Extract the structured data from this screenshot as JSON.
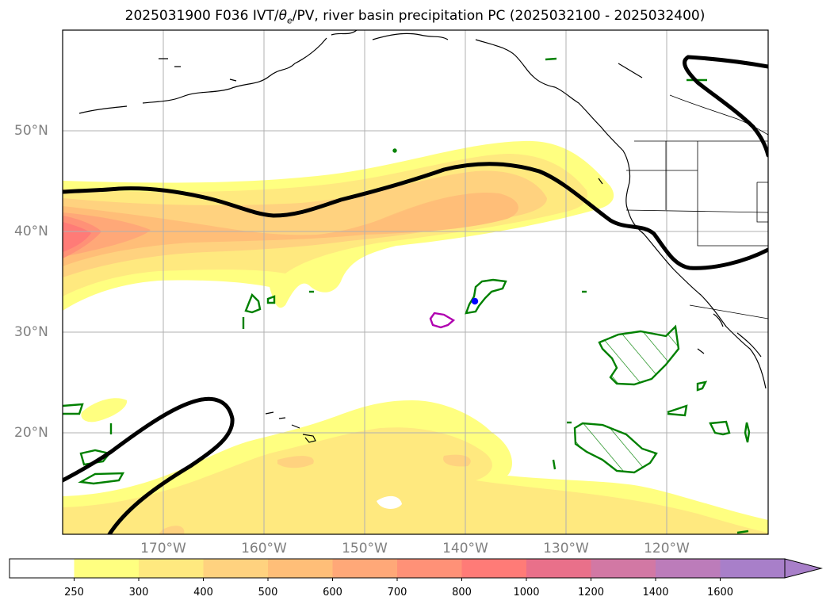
{
  "title": {
    "prefix": "2025031900 F036 IVT/",
    "theta": "θ",
    "theta_sub": "e",
    "suffix": "/PV, river basin precipitation PC (2025032100 - 2025032400)"
  },
  "latitude_labels": [
    "50°N",
    "40°N",
    "30°N",
    "20°N"
  ],
  "longitude_labels": [
    "170°W",
    "160°W",
    "150°W",
    "140°W",
    "130°W",
    "120°W"
  ],
  "colorbar": {
    "ticks": [
      "250",
      "300",
      "400",
      "500",
      "600",
      "700",
      "800",
      "1000",
      "1200",
      "1400",
      "1600"
    ],
    "colors": [
      "#ffffff",
      "#ffff80",
      "#ffe97f",
      "#ffd27f",
      "#ffbe78",
      "#ffa878",
      "#ff9177",
      "#ff7b77",
      "#e9708a",
      "#d278a4",
      "#bc7cba",
      "#a87fc9"
    ],
    "extend": "max"
  },
  "colors": {
    "coastline": "#000000",
    "theta_e_contour": "#000000",
    "pv_positive": "#008000",
    "pv_negative": "#b000b0",
    "grid": "#b0b0b0"
  }
}
